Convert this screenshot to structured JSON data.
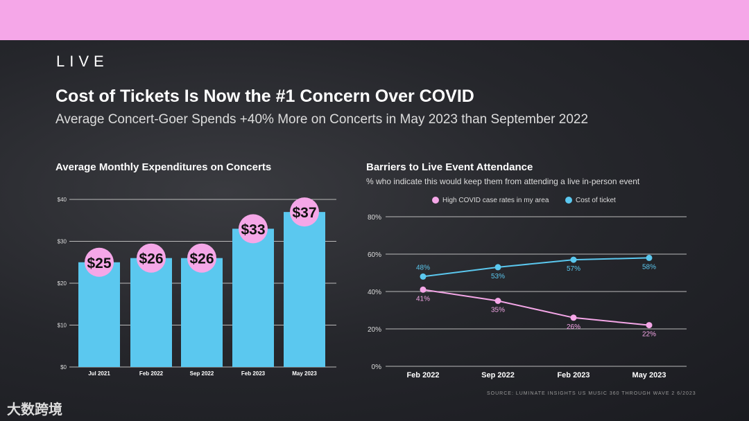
{
  "header": {
    "brand": "LIVE",
    "title": "Cost of Tickets Is Now the #1 Concern Over COVID",
    "subtitle": "Average Concert-Goer Spends +40% More on Concerts in May 2023 than September 2022"
  },
  "colors": {
    "pink": "#f5a7e8",
    "blue": "#5bc8ef"
  },
  "chart_data": [
    {
      "type": "bar",
      "title": "Average Monthly Expenditures on Concerts",
      "categories": [
        "Jul 2021",
        "Feb 2022",
        "Sep 2022",
        "Feb 2023",
        "May 2023"
      ],
      "values": [
        25,
        26,
        26,
        33,
        37
      ],
      "data_labels": [
        "$25",
        "$26",
        "$26",
        "$33",
        "$37"
      ],
      "yticks": [
        "$0",
        "$10",
        "$20",
        "$30",
        "$40"
      ],
      "ylim": [
        0,
        40
      ],
      "grid": true
    },
    {
      "type": "line",
      "title": "Barriers to Live Event Attendance",
      "subtitle": "% who indicate this would keep them from attending a live in-person event",
      "categories": [
        "Feb 2022",
        "Sep 2022",
        "Feb 2023",
        "May 2023"
      ],
      "series": [
        {
          "name": "High COVID case rates in my area",
          "values": [
            41,
            35,
            26,
            22
          ],
          "labels": [
            "41%",
            "35%",
            "26%",
            "22%"
          ]
        },
        {
          "name": "Cost of ticket",
          "values": [
            48,
            53,
            57,
            58
          ],
          "labels": [
            "48%",
            "53%",
            "57%",
            "58%"
          ]
        }
      ],
      "yticks": [
        "0%",
        "20%",
        "40%",
        "60%",
        "80%"
      ],
      "ylim": [
        0,
        80
      ],
      "legend": "top-center",
      "grid": true
    }
  ],
  "footer": {
    "source": "SOURCE: LUMINATE INSIGHTS US MUSIC 360 THROUGH WAVE 2 6/2023",
    "watermark": "大数跨境"
  }
}
